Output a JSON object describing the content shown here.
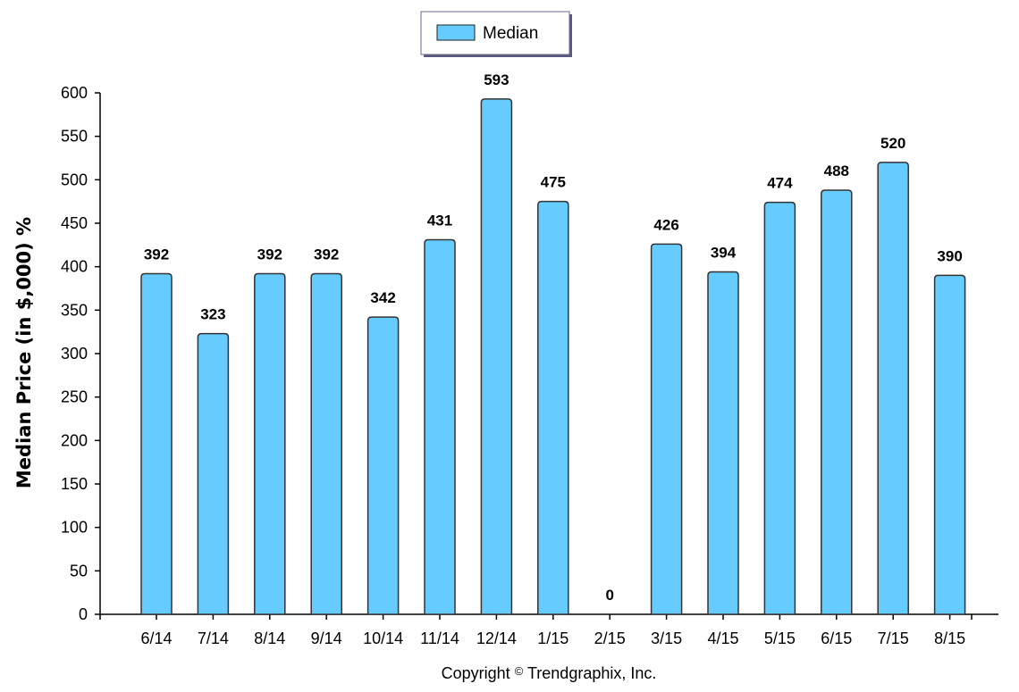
{
  "chart_data": {
    "type": "bar",
    "categories": [
      "6/14",
      "7/14",
      "8/14",
      "9/14",
      "10/14",
      "11/14",
      "12/14",
      "1/15",
      "2/15",
      "3/15",
      "4/15",
      "5/15",
      "6/15",
      "7/15",
      "8/15"
    ],
    "series": [
      {
        "name": "Median",
        "values": [
          392,
          323,
          392,
          392,
          342,
          431,
          593,
          475,
          0,
          426,
          394,
          474,
          488,
          520,
          390
        ]
      }
    ],
    "ylabel": "Median Price (in $,000) %",
    "xlabel": "",
    "ylim": [
      0,
      600
    ],
    "yticks": [
      0,
      50,
      100,
      150,
      200,
      250,
      300,
      350,
      400,
      450,
      500,
      550,
      600
    ],
    "grid": false,
    "legend": "top-center",
    "colors": {
      "bar_fill": "#66ccff",
      "bar_stroke": "#333333"
    }
  },
  "footer": {
    "copyright_prefix": "Copyright",
    "copyright_symbol": "©",
    "copyright_owner": "Trendgraphix, Inc."
  }
}
